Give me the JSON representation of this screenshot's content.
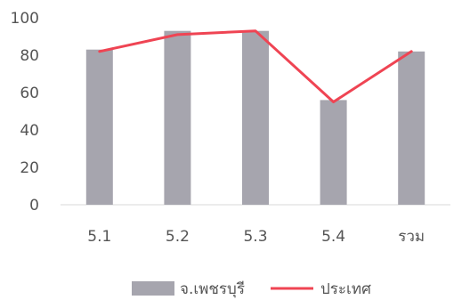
{
  "chart_data": {
    "type": "bar",
    "categories": [
      "5.1",
      "5.2",
      "5.3",
      "5.4",
      "รวม"
    ],
    "series": [
      {
        "name": "จ.เพชรบุรี",
        "type": "bar",
        "color": "#a6a5ae",
        "values": [
          83,
          93,
          93,
          56,
          82
        ]
      },
      {
        "name": "ประเทศ",
        "type": "line",
        "color": "#ef4453",
        "values": [
          82,
          91,
          93,
          55,
          82
        ]
      }
    ],
    "yticks": [
      0,
      20,
      40,
      60,
      80,
      100
    ],
    "ylim": [
      0,
      100
    ],
    "grid": false,
    "legend_position": "bottom",
    "title": "",
    "xlabel": "",
    "ylabel": ""
  }
}
